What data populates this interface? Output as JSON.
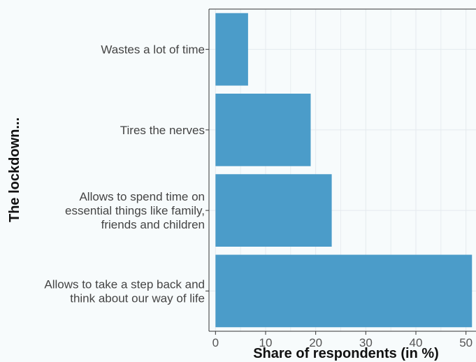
{
  "chart_data": {
    "type": "bar",
    "orientation": "horizontal",
    "categories": [
      [
        "Wastes a lot of time"
      ],
      [
        "Tires the nerves"
      ],
      [
        "Allows to spend time on",
        "essential things like family,",
        "friends and children"
      ],
      [
        "Allows to take a step back and",
        "think about our way of life"
      ]
    ],
    "values": [
      6.5,
      19,
      23.2,
      51.2
    ],
    "xlabel": "Share of respondents (in %)",
    "ylabel": "The lockdown...",
    "xlim": [
      -1.3,
      52
    ],
    "xticks": [
      0,
      10,
      20,
      30,
      40,
      50
    ],
    "grid": true,
    "bar_color": "#4b9cc9"
  }
}
